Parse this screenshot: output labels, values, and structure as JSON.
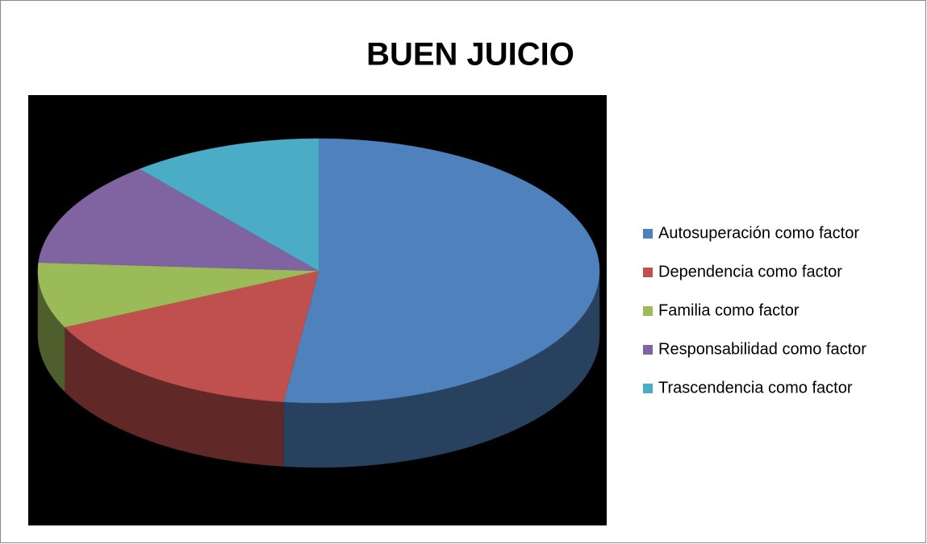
{
  "chart_data": {
    "type": "pie",
    "title": "BUEN JUICIO",
    "categories": [
      "Autosuperación como factor",
      "Dependencia como factor",
      "Familia como factor",
      "Responsabilidad como factor",
      "Trascendencia como factor"
    ],
    "values": [
      52,
      16,
      8,
      13,
      11
    ],
    "colors": [
      "#4F81BD",
      "#C0504D",
      "#9BBB59",
      "#8064A2",
      "#4BACC6"
    ],
    "legend": "right"
  }
}
